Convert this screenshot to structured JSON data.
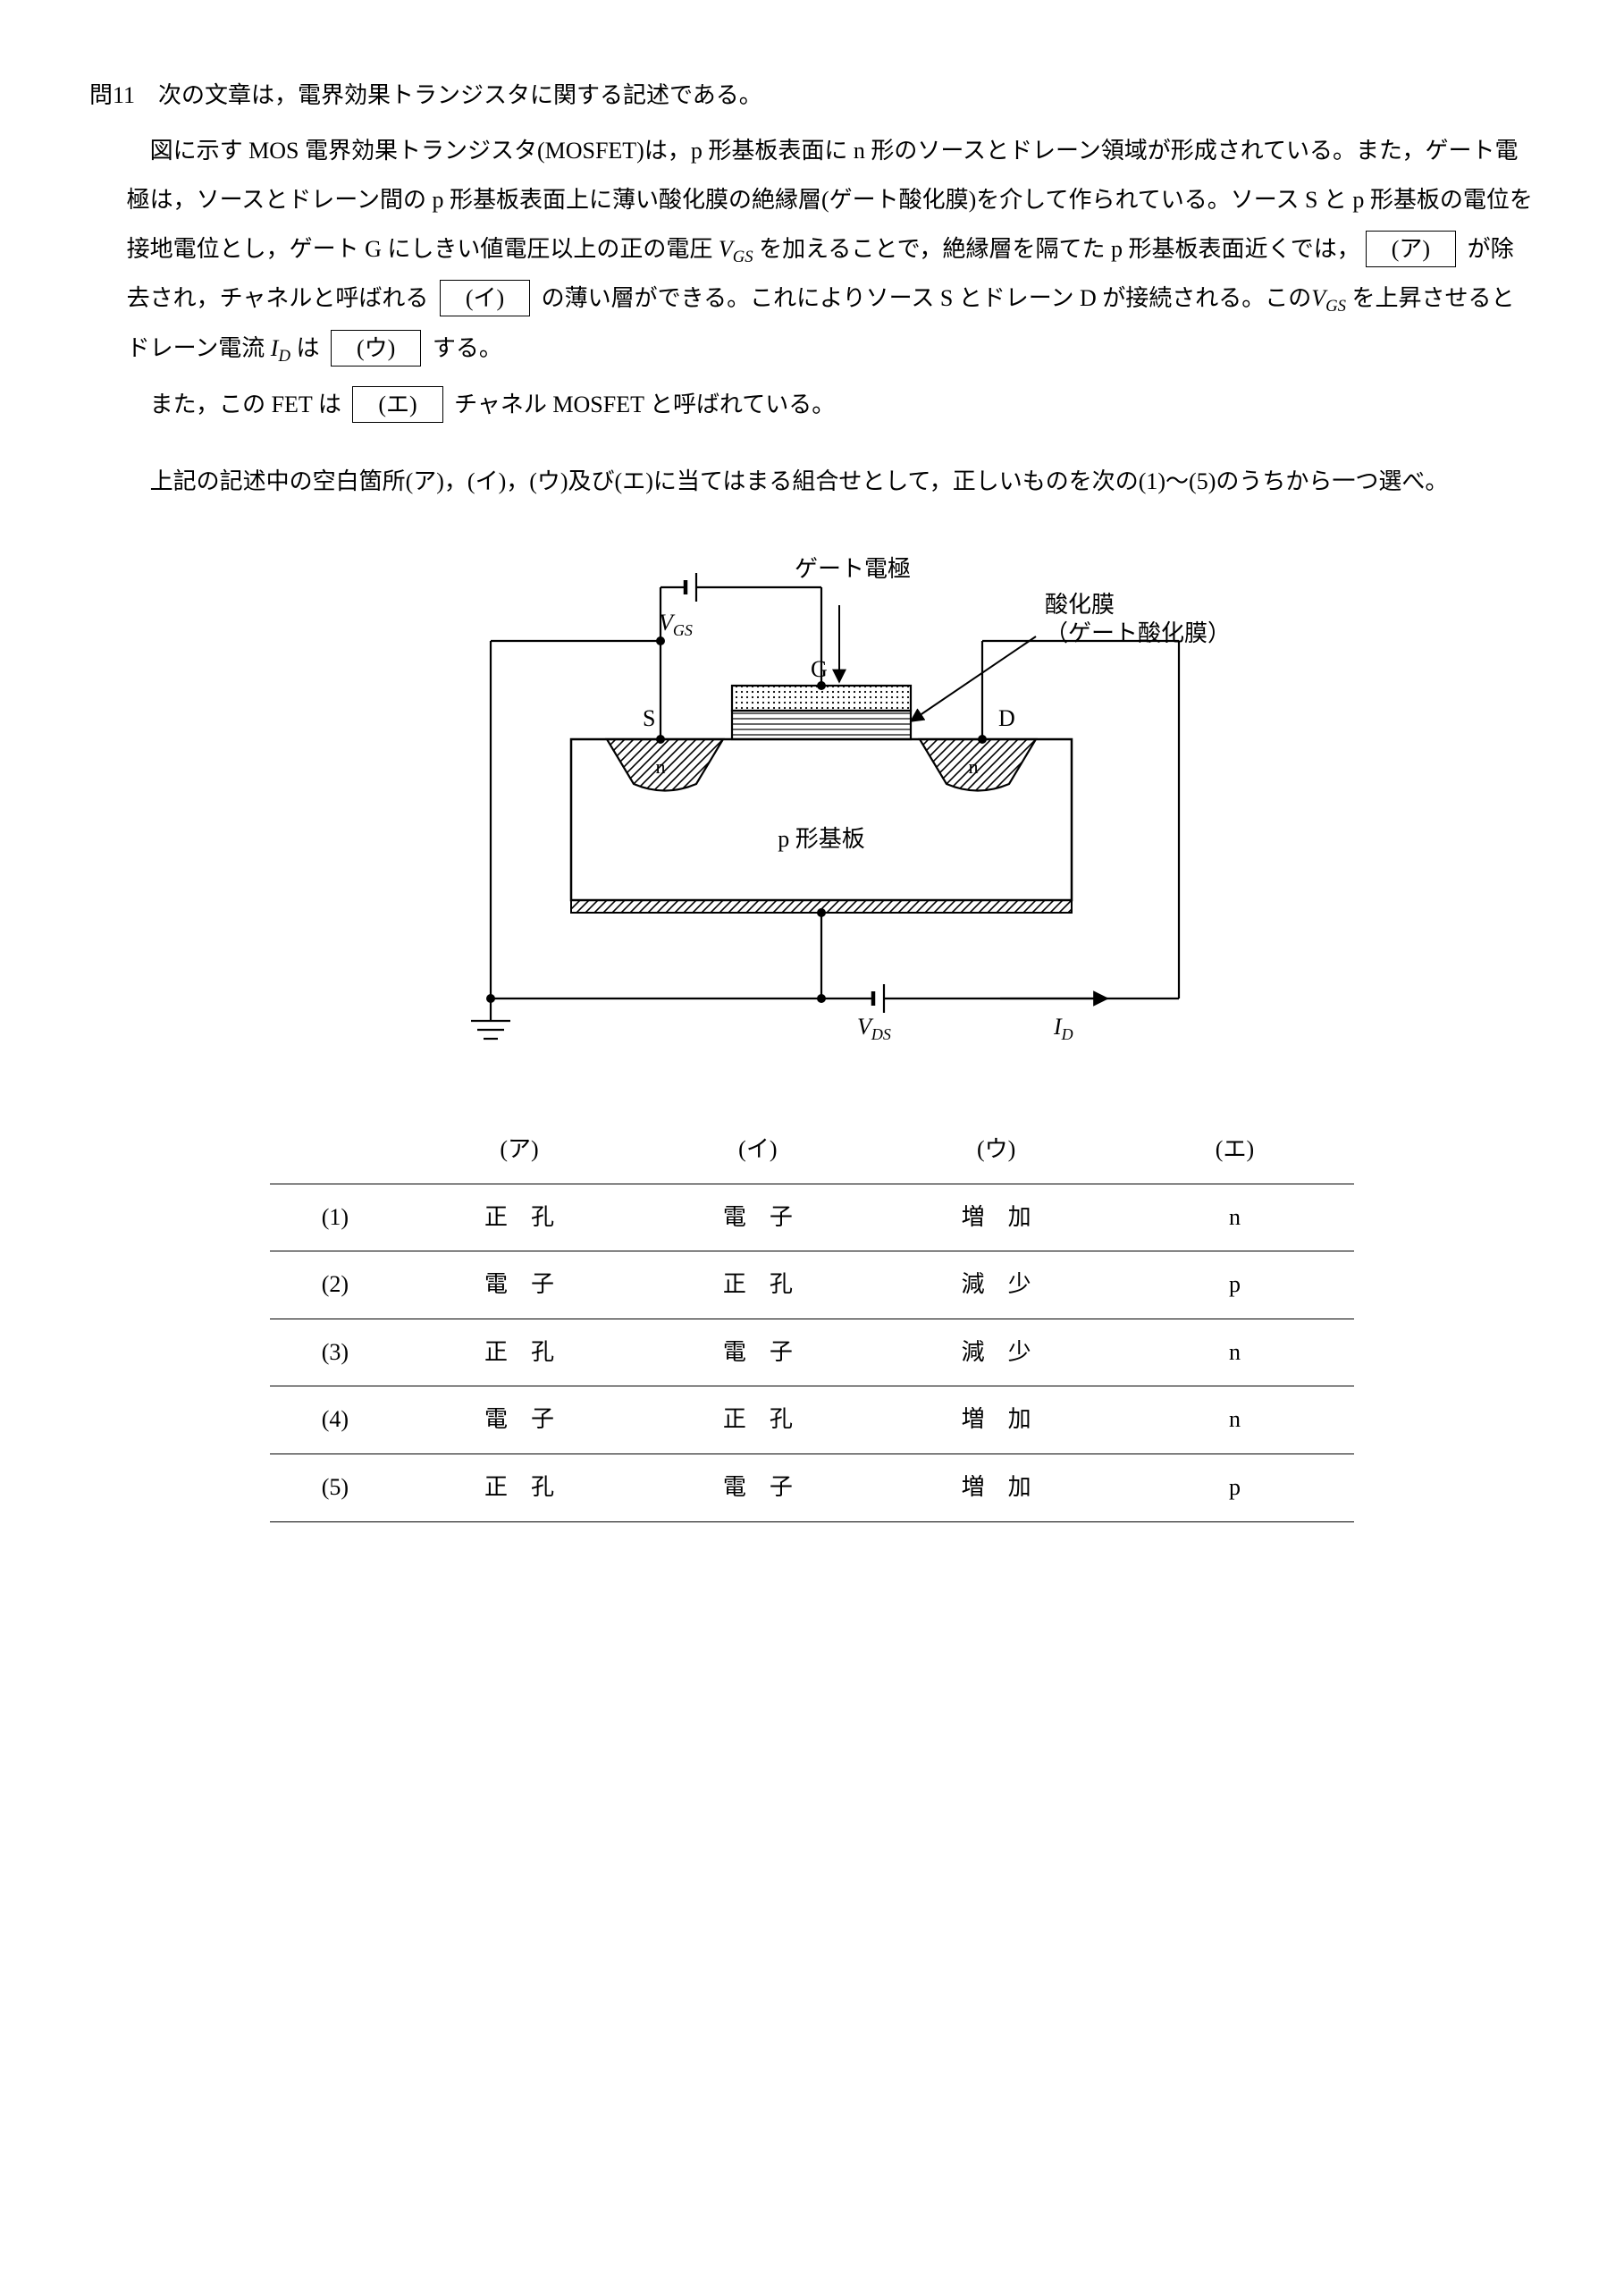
{
  "question": {
    "number": "問11",
    "lead": "次の文章は，電界効果トランジスタに関する記述である。",
    "p1a": "図に示す MOS 電界効果トランジスタ(MOSFET)は，p 形基板表面に n 形のソースとドレーン領域が形成されている。また，ゲート電極は，ソースとドレーン間の p 形基板表面上に薄い酸化膜の絶縁層(ゲート酸化膜)を介して作られている。ソース S と p 形基板の電位を接地電位とし，ゲート G にしきい値電圧以上の正の電圧 ",
    "vgs": "V",
    "vgs_sub": "GS",
    "p1b": " を加えることで，絶縁層を隔てた p 形基板表面近くでは，",
    "blank_a": "(ア)",
    "p1c": " が除去され，チャネルと呼ばれる ",
    "blank_i": "(イ)",
    "p1d": " の薄い層ができる。これによりソース S とドレーン D が接続される。この",
    "p1e": " を上昇させるとドレーン電流 ",
    "id": "I",
    "id_sub": "D",
    "p1f": " は ",
    "blank_u": "(ウ)",
    "p1g": " する。",
    "p2a": "また，この FET は ",
    "blank_e": "(エ)",
    "p2b": " チャネル MOSFET と呼ばれている。",
    "instr": "上記の記述中の空白箇所(ア)，(イ)，(ウ)及び(エ)に当てはまる組合せとして，正しいものを次の(1)～(5)のうちから一つ選べ。"
  },
  "figure": {
    "labels": {
      "gate_electrode": "ゲート電極",
      "oxide1": "酸化膜",
      "oxide2": "（ゲート酸化膜）",
      "S": "S",
      "G": "G",
      "D": "D",
      "n": "n",
      "substrate": "p 形基板",
      "VGS": "V",
      "VGS_sub": "GS",
      "VDS": "V",
      "VDS_sub": "DS",
      "ID": "I",
      "ID_sub": "D"
    },
    "colors": {
      "stroke": "#000000",
      "bg": "#ffffff",
      "hatch": "#000000"
    },
    "stroke_width": 2
  },
  "table": {
    "headers": [
      "(ア)",
      "(イ)",
      "(ウ)",
      "(エ)"
    ],
    "rows": [
      {
        "num": "(1)",
        "a": "正　孔",
        "i": "電　子",
        "u": "増　加",
        "e": "n"
      },
      {
        "num": "(2)",
        "a": "電　子",
        "i": "正　孔",
        "u": "減　少",
        "e": "p"
      },
      {
        "num": "(3)",
        "a": "正　孔",
        "i": "電　子",
        "u": "減　少",
        "e": "n"
      },
      {
        "num": "(4)",
        "a": "電　子",
        "i": "正　孔",
        "u": "増　加",
        "e": "n"
      },
      {
        "num": "(5)",
        "a": "正　孔",
        "i": "電　子",
        "u": "増　加",
        "e": "p"
      }
    ]
  }
}
